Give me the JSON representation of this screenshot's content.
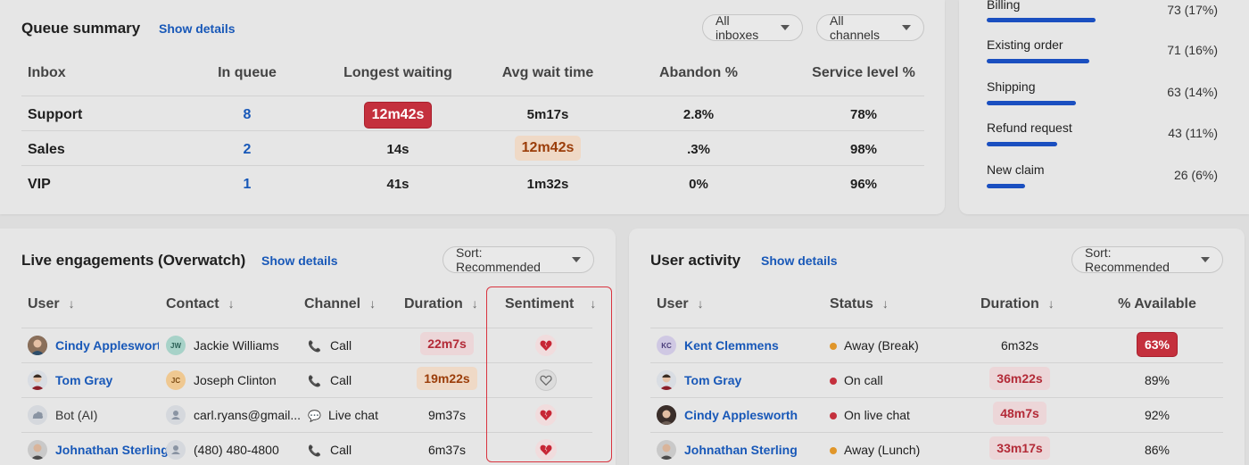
{
  "queue": {
    "title": "Queue summary",
    "show_details": "Show details",
    "filter_inboxes": "All inboxes",
    "filter_channels": "All channels",
    "headers": [
      "Inbox",
      "In queue",
      "Longest waiting",
      "Avg wait time",
      "Abandon %",
      "Service level %"
    ],
    "rows": [
      {
        "inbox": "Support",
        "in_queue": "8",
        "longest": "12m42s",
        "avg": "5m17s",
        "abandon": "2.8%",
        "service": "78%"
      },
      {
        "inbox": "Sales",
        "in_queue": "2",
        "longest": "14s",
        "avg": "12m42s",
        "abandon": ".3%",
        "service": "98%"
      },
      {
        "inbox": "VIP",
        "in_queue": "1",
        "longest": "41s",
        "avg": "1m32s",
        "abandon": "0%",
        "service": "96%"
      }
    ]
  },
  "reasons": {
    "items": [
      {
        "label": "Billing",
        "value": "73 (17%)",
        "fraction": 0.17
      },
      {
        "label": "Existing order",
        "value": "71 (16%)",
        "fraction": 0.16
      },
      {
        "label": "Shipping",
        "value": "63 (14%)",
        "fraction": 0.14
      },
      {
        "label": "Refund request",
        "value": "43 (11%)",
        "fraction": 0.11
      },
      {
        "label": "New claim",
        "value": "26 (6%)",
        "fraction": 0.06
      }
    ]
  },
  "live": {
    "title": "Live engagements (Overwatch)",
    "show_details": "Show details",
    "sort": "Sort: Recommended",
    "headers": {
      "user": "User",
      "contact": "Contact",
      "channel": "Channel",
      "duration": "Duration",
      "sentiment": "Sentiment"
    },
    "rows": [
      {
        "user": "Cindy Applesworth",
        "user_display": "Cindy Applesworth",
        "contact": "Jackie Williams",
        "contact_initials": "JW",
        "channel": "Call",
        "duration": "22m7s",
        "sentiment": "broken-heart"
      },
      {
        "user": "Tom Gray",
        "user_display": "Tom Gray",
        "contact": "Joseph Clinton",
        "contact_initials": "JC",
        "channel": "Call",
        "duration": "19m22s",
        "sentiment": "heart-outline"
      },
      {
        "user": "Bot (AI)",
        "user_display": "Bot (AI)",
        "contact": "carl.ryans@gmail...",
        "contact_initials": "",
        "channel": "Live chat",
        "duration": "9m37s",
        "sentiment": "broken-heart"
      },
      {
        "user": "Johnathan Sterling",
        "user_display": "Johnathan Sterling",
        "contact": "(480) 480-4800",
        "contact_initials": "",
        "channel": "Call",
        "duration": "6m37s",
        "sentiment": "broken-heart"
      }
    ]
  },
  "activity": {
    "title": "User activity",
    "show_details": "Show details",
    "sort": "Sort: Recommended",
    "headers": {
      "user": "User",
      "status": "Status",
      "duration": "Duration",
      "available": "% Available"
    },
    "rows": [
      {
        "user": "Kent Clemmens",
        "initials": "KC",
        "status": "Away (Break)",
        "status_color": "#e0962a",
        "duration": "6m32s",
        "available": "63%"
      },
      {
        "user": "Tom Gray",
        "initials": "",
        "status": "On call",
        "status_color": "#c4303d",
        "duration": "36m22s",
        "available": "89%"
      },
      {
        "user": "Cindy Applesworth",
        "initials": "",
        "status": "On live chat",
        "status_color": "#c4303d",
        "duration": "48m7s",
        "available": "92%"
      },
      {
        "user": "Johnathan Sterling",
        "initials": "",
        "status": "Away (Lunch)",
        "status_color": "#e0962a",
        "duration": "33m17s",
        "available": "86%"
      }
    ]
  },
  "arrow_glyph": "↓"
}
